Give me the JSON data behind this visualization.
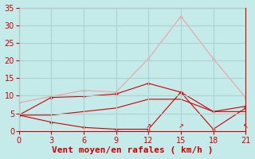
{
  "xlabel": "Vent moyen/en rafales ( km/h )",
  "bg_color": "#c5eaea",
  "grid_color": "#b0d0d0",
  "xlim": [
    0,
    21
  ],
  "ylim": [
    0,
    35
  ],
  "xticks": [
    0,
    3,
    6,
    9,
    12,
    15,
    18,
    21
  ],
  "yticks": [
    0,
    5,
    10,
    15,
    20,
    25,
    30,
    35
  ],
  "line_rafales_x": [
    0,
    3,
    6,
    9,
    12,
    15,
    18,
    21
  ],
  "line_rafales_y": [
    8.0,
    9.8,
    11.5,
    11.0,
    20.5,
    32.5,
    20.5,
    9.5
  ],
  "line_rafales_color": "#f0a0a0",
  "line_moyen_x": [
    0,
    3,
    6,
    9,
    12,
    15,
    18,
    21
  ],
  "line_moyen_y": [
    4.5,
    9.5,
    9.8,
    10.5,
    13.5,
    11.0,
    5.5,
    7.0
  ],
  "line_moyen_color": "#cc0000",
  "line_min_x": [
    0,
    3,
    6,
    9,
    12,
    15,
    18,
    21
  ],
  "line_min_y": [
    4.5,
    4.5,
    5.5,
    6.5,
    9.0,
    9.0,
    5.5,
    5.5
  ],
  "line_min_color": "#cc0000",
  "line_low_x": [
    0,
    3,
    6,
    9,
    12,
    15,
    18,
    21
  ],
  "line_low_y": [
    4.5,
    2.5,
    1.0,
    0.5,
    0.5,
    11.0,
    0.5,
    6.5
  ],
  "line_low_color": "#cc0000",
  "xlabel_color": "#cc0000",
  "xlabel_fontsize": 8,
  "tick_color": "#cc0000",
  "tick_fontsize": 7,
  "marker_size": 3
}
